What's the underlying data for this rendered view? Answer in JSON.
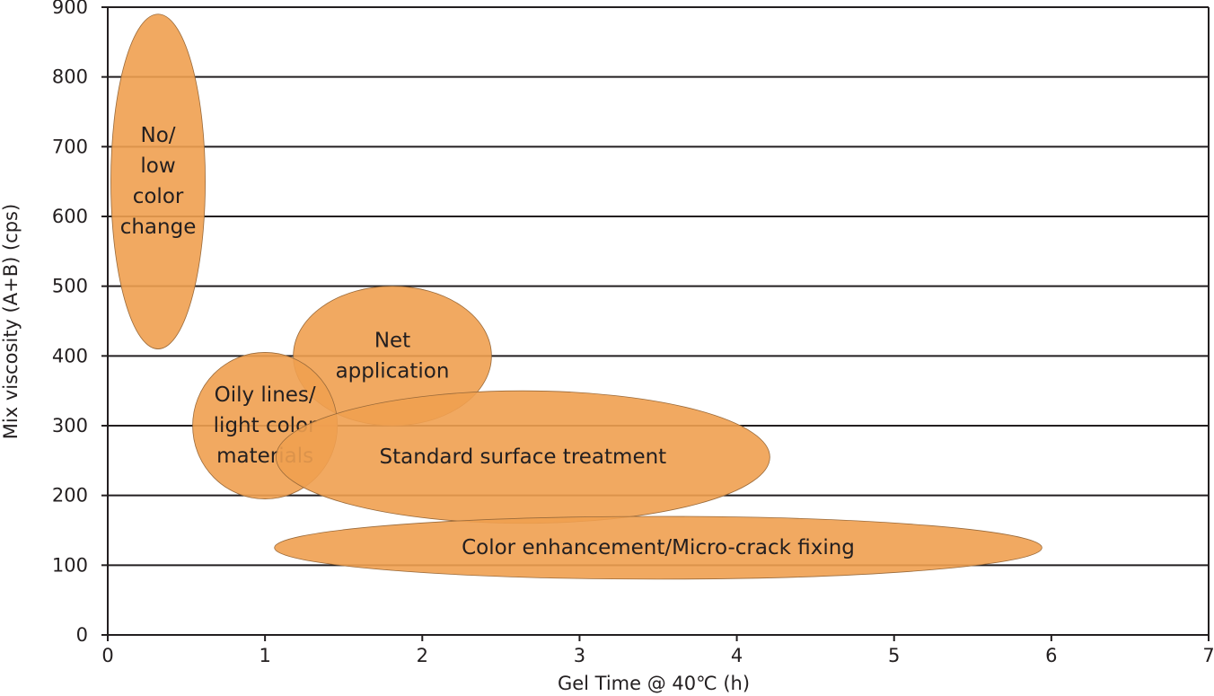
{
  "chart_data": {
    "type": "scatter",
    "xlabel": "Gel Time  @ 40℃ (h)",
    "ylabel": "Mix viscosity (A+B) (cps)",
    "xlim": [
      0,
      7
    ],
    "ylim": [
      0,
      900
    ],
    "x_ticks": [
      0,
      1,
      2,
      3,
      4,
      5,
      6,
      7
    ],
    "y_ticks": [
      0,
      100,
      200,
      300,
      400,
      500,
      600,
      700,
      800,
      900
    ],
    "grid": "horizontal",
    "fill_color": "#f0a050",
    "regions": [
      {
        "label": [
          "No/",
          "low",
          "color",
          "change"
        ],
        "x_center": 0.32,
        "y_center": 650,
        "x_range": [
          0.03,
          0.63
        ],
        "y_range": [
          410,
          890
        ]
      },
      {
        "label": [
          "Net",
          "application"
        ],
        "x_center": 1.81,
        "y_center": 400,
        "x_range": [
          1.18,
          2.44
        ],
        "y_range": [
          300,
          500
        ]
      },
      {
        "label": [
          "Oily lines/",
          "light color",
          "materials"
        ],
        "x_center": 1.0,
        "y_center": 300,
        "x_range": [
          0.54,
          1.46
        ],
        "y_range": [
          195,
          405
        ]
      },
      {
        "label": [
          "Standard surface treatment"
        ],
        "x_center": 2.64,
        "y_center": 255,
        "x_range": [
          1.07,
          4.21
        ],
        "y_range": [
          160,
          350
        ]
      },
      {
        "label": [
          "Color enhancement/Micro-crack fixing"
        ],
        "x_center": 3.5,
        "y_center": 125,
        "x_range": [
          1.06,
          5.94
        ],
        "y_range": [
          80,
          170
        ]
      }
    ]
  }
}
